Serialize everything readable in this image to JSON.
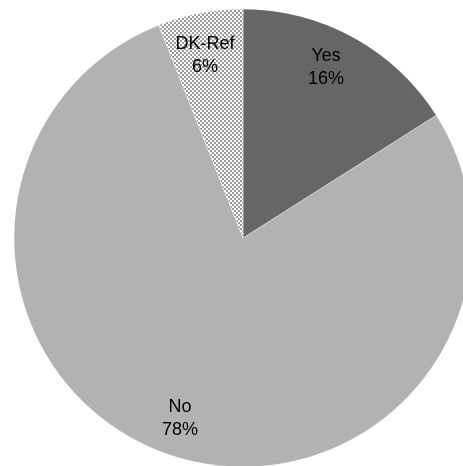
{
  "chart_data": {
    "type": "pie",
    "start_angle_deg": 0,
    "direction": "clockwise",
    "slices": [
      {
        "label": "Yes",
        "value": 16,
        "percent_label": "16%",
        "color": "#666666",
        "pattern": "solid"
      },
      {
        "label": "No",
        "value": 78,
        "percent_label": "78%",
        "color": "#b2b2b2",
        "pattern": "solid"
      },
      {
        "label": "DK-Ref",
        "value": 6,
        "percent_label": "6%",
        "color": "#ffffff",
        "pattern": "dotted-gray"
      }
    ],
    "legend": "none",
    "title": ""
  }
}
